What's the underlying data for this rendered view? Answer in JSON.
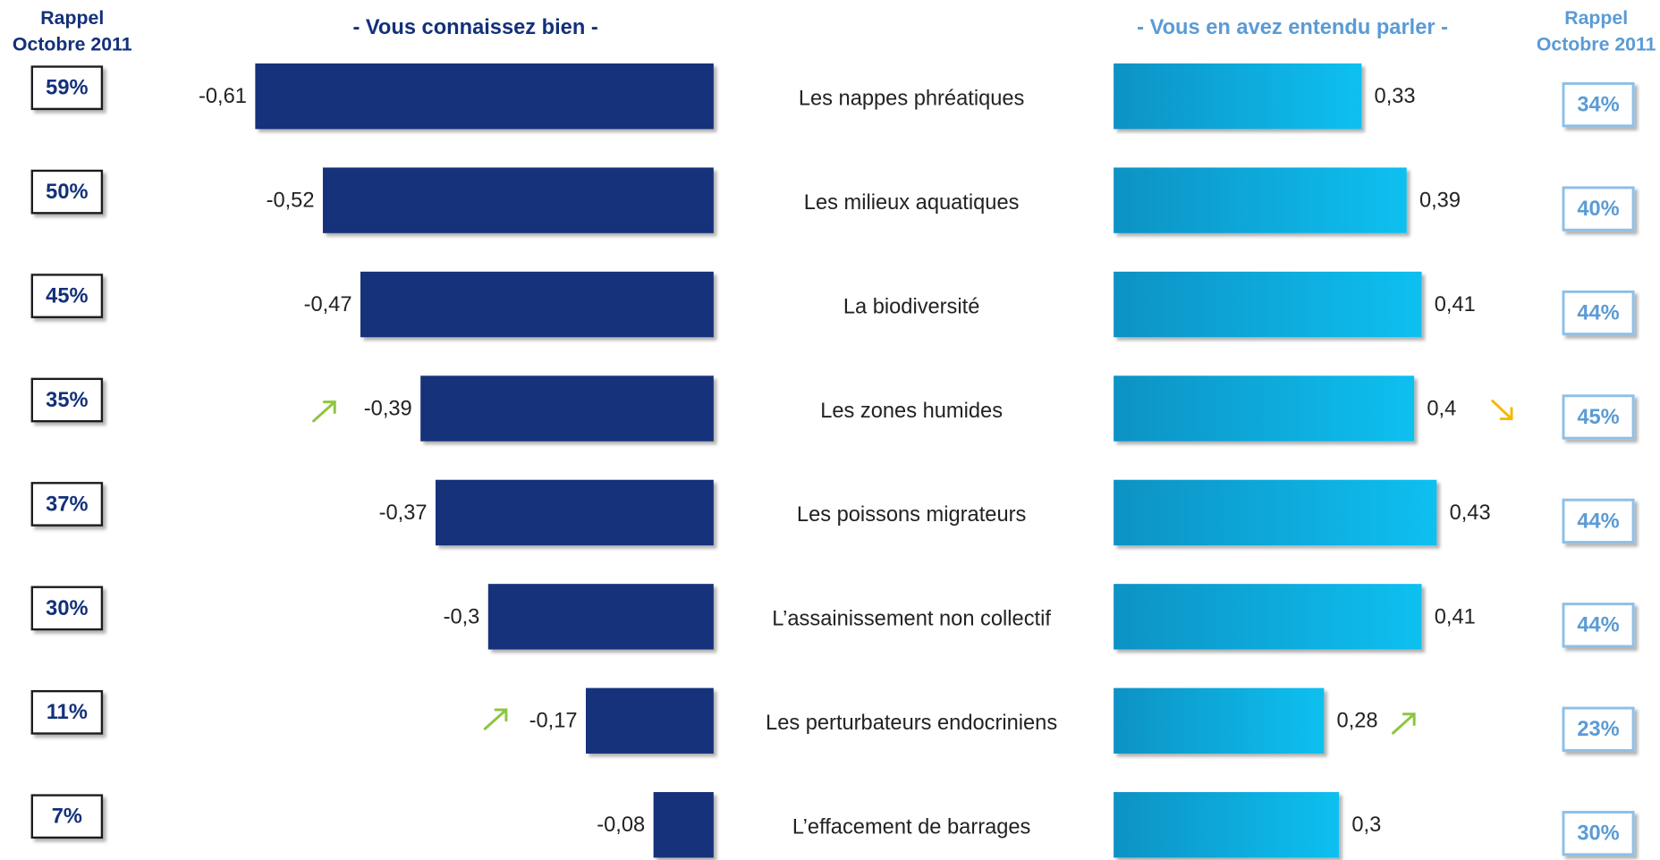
{
  "chart_data": {
    "type": "butterfly",
    "categories": [
      "Les nappes phréatiques",
      "Les milieux aquatiques",
      "La biodiversité",
      "Les zones humides",
      "Les poissons migrateurs",
      "L’assainissement non collectif",
      "Les perturbateurs endocriniens",
      "L’effacement de barrages"
    ],
    "series": [
      {
        "name": "- Vous connaissez bien -",
        "color": "#13307a",
        "values": [
          -0.61,
          -0.52,
          -0.47,
          -0.39,
          -0.37,
          -0.3,
          -0.17,
          -0.08
        ],
        "value_labels": [
          "-0,61",
          "-0,52",
          "-0,47",
          "-0,39",
          "-0,37",
          "-0,3",
          "-0,17",
          "-0,08"
        ]
      },
      {
        "name": "- Vous en avez entendu parler -",
        "color": "#0fc0f0",
        "values": [
          0.33,
          0.39,
          0.41,
          0.4,
          0.43,
          0.41,
          0.28,
          0.3
        ],
        "value_labels": [
          "0,33",
          "0,39",
          "0,41",
          "0,4",
          "0,43",
          "0,41",
          "0,28",
          "0,3"
        ]
      }
    ],
    "rappel": [
      {
        "title": [
          "Rappel",
          "Octobre 2011"
        ],
        "color": "#13307a",
        "values": [
          59,
          50,
          45,
          35,
          37,
          30,
          11,
          7
        ],
        "value_labels": [
          "59%",
          "50%",
          "45%",
          "35%",
          "37%",
          "30%",
          "11%",
          "7%"
        ]
      },
      {
        "title": [
          "Rappel",
          "Octobre 2011"
        ],
        "color": "#5b9bd5",
        "values": [
          34,
          40,
          44,
          45,
          44,
          44,
          23,
          30
        ],
        "value_labels": [
          "34%",
          "40%",
          "44%",
          "45%",
          "44%",
          "44%",
          "23%",
          "30%"
        ]
      }
    ]
  }
}
